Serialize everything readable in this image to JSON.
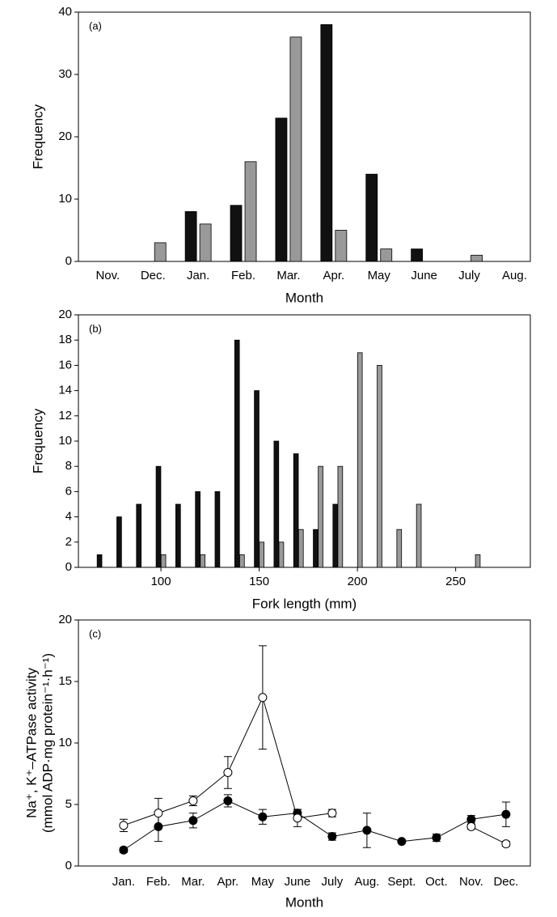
{
  "chart_data": [
    {
      "type": "bar",
      "annotation": "(a)",
      "xlabel": "Month",
      "ylabel": "Frequency",
      "categories": [
        "Nov.",
        "Dec.",
        "Jan.",
        "Feb.",
        "Mar.",
        "Apr.",
        "May",
        "June",
        "July",
        "Aug."
      ],
      "series": [
        {
          "color": "#111111",
          "values": [
            0,
            0,
            8,
            9,
            23,
            38,
            14,
            2,
            0,
            0
          ]
        },
        {
          "color": "#999999",
          "values": [
            0,
            3,
            6,
            16,
            36,
            5,
            2,
            0,
            1,
            0
          ]
        }
      ],
      "ylim": [
        0,
        40
      ],
      "yticks": [
        0,
        10,
        20,
        30,
        40
      ],
      "grid": false
    },
    {
      "type": "bar",
      "annotation": "(b)",
      "xlabel": "Fork length (mm)",
      "ylabel": "Frequency",
      "x": [
        70,
        80,
        90,
        100,
        110,
        120,
        130,
        140,
        150,
        160,
        170,
        180,
        190,
        200,
        210,
        220,
        230,
        240,
        250,
        260
      ],
      "series": [
        {
          "color": "#111111",
          "values": [
            1,
            4,
            5,
            8,
            5,
            6,
            6,
            18,
            14,
            10,
            9,
            3,
            5,
            null,
            null,
            null,
            null,
            null,
            null,
            null
          ]
        },
        {
          "color": "#999999",
          "values": [
            null,
            null,
            null,
            1,
            null,
            1,
            null,
            1,
            2,
            2,
            3,
            8,
            8,
            17,
            16,
            3,
            5,
            null,
            null,
            1
          ]
        }
      ],
      "xlim": [
        58,
        288
      ],
      "xticks": [
        100,
        150,
        200,
        250
      ],
      "ylim": [
        0,
        20
      ],
      "yticks": [
        0,
        2,
        4,
        6,
        8,
        10,
        12,
        14,
        16,
        18,
        20
      ],
      "grid": false
    },
    {
      "type": "line",
      "annotation": "(c)",
      "xlabel": "Month",
      "ylabel": [
        "Na⁺, K⁺–ATPase activity",
        "(mmol ADP·mg protein⁻¹·h⁻¹)"
      ],
      "categories": [
        "Jan.",
        "Feb.",
        "Mar.",
        "Apr.",
        "May",
        "June",
        "July",
        "Aug.",
        "Sept.",
        "Oct.",
        "Nov.",
        "Dec."
      ],
      "series": [
        {
          "color": "#000000",
          "values": [
            1.3,
            3.2,
            3.7,
            5.3,
            4.0,
            4.3,
            2.4,
            2.9,
            2.0,
            2.3,
            3.8,
            4.2
          ],
          "errors": [
            0.2,
            1.2,
            0.6,
            0.5,
            0.6,
            0.3,
            0.3,
            1.4,
            0.1,
            0.3,
            0.3,
            1.0
          ]
        },
        {
          "color": "#ffffff",
          "values": [
            3.3,
            4.3,
            5.3,
            7.6,
            13.7,
            3.9,
            4.3,
            null,
            null,
            null,
            3.2,
            1.8
          ],
          "errors": [
            0.5,
            1.2,
            0.4,
            1.3,
            4.2,
            0.7,
            0.3,
            null,
            null,
            null,
            0.2,
            0.2
          ]
        }
      ],
      "ylim": [
        0,
        20
      ],
      "yticks": [
        0,
        5,
        10,
        15,
        20
      ],
      "grid": false
    }
  ]
}
